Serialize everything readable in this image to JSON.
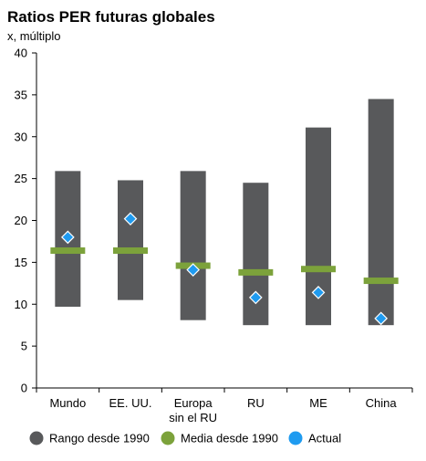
{
  "chart_data": {
    "type": "range-bar",
    "title": "Ratios PER futuras globales",
    "subtitle": "x, múltiplo",
    "categories": [
      [
        "Mundo"
      ],
      [
        "EE. UU."
      ],
      [
        "Europa",
        "sin el RU"
      ],
      [
        "RU"
      ],
      [
        "ME"
      ],
      [
        "China"
      ]
    ],
    "ylim": [
      0,
      40
    ],
    "yticks": [
      0,
      5,
      10,
      15,
      20,
      25,
      30,
      35,
      40
    ],
    "grid": false,
    "legend_position": "bottom",
    "series": [
      {
        "name": "Rango desde 1990",
        "color": "#58595b",
        "low": [
          9.7,
          10.5,
          8.1,
          7.5,
          7.5,
          7.5
        ],
        "high": [
          25.9,
          24.8,
          25.9,
          24.5,
          31.1,
          34.5
        ]
      },
      {
        "name": "Media desde 1990",
        "color": "#7ca23b",
        "values": [
          16.4,
          16.4,
          14.6,
          13.8,
          14.2,
          12.8
        ]
      },
      {
        "name": "Actual",
        "color": "#1f9bf0",
        "values": [
          18.0,
          20.2,
          14.1,
          10.8,
          11.4,
          8.3
        ]
      }
    ]
  }
}
